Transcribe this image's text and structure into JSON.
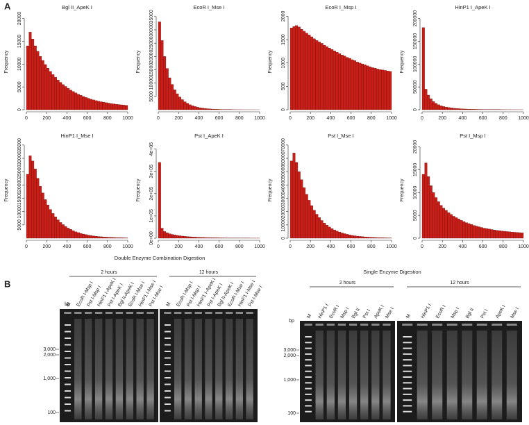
{
  "chart_data": [
    {
      "type": "histogram",
      "title": "Bgl II_ApeK I",
      "ylabel": "Frequency",
      "color": "#c81e17",
      "bins": [
        0,
        25,
        50,
        75,
        100,
        125,
        150,
        175,
        200,
        225,
        250,
        275,
        300,
        325,
        350,
        375,
        400,
        425,
        450,
        475,
        500,
        525,
        550,
        575,
        600,
        625,
        650,
        675,
        700,
        725,
        750,
        775,
        800,
        825,
        850,
        875,
        900,
        925,
        950,
        975,
        1000
      ],
      "values": [
        14000,
        17000,
        15500,
        14000,
        12800,
        11700,
        10800,
        9900,
        9100,
        8400,
        7700,
        7100,
        6500,
        6000,
        5500,
        5100,
        4700,
        4300,
        4000,
        3700,
        3400,
        3150,
        2900,
        2700,
        2500,
        2300,
        2150,
        2000,
        1850,
        1750,
        1650,
        1550,
        1450,
        1350,
        1280,
        1200,
        1130,
        1070,
        1010,
        960
      ],
      "xlim": [
        0,
        1000
      ],
      "xticks": [
        0,
        200,
        400,
        600,
        800,
        1000
      ],
      "ylim": [
        0,
        21000
      ],
      "yticks": [
        0,
        5000,
        10000,
        15000,
        20000
      ]
    },
    {
      "type": "histogram",
      "title": "EcoR I_Mse I",
      "ylabel": "Frequency",
      "color": "#c81e17",
      "bins": [
        0,
        25,
        50,
        75,
        100,
        125,
        150,
        175,
        200,
        225,
        250,
        275,
        300,
        325,
        350,
        375,
        400,
        425,
        450,
        475,
        500,
        525,
        550,
        575,
        600,
        625,
        650,
        675,
        700,
        725,
        750,
        775,
        800,
        825,
        850,
        875,
        900,
        925,
        950,
        975,
        1000
      ],
      "values": [
        33000,
        26000,
        20000,
        15500,
        12000,
        9500,
        7500,
        6000,
        4800,
        3800,
        3000,
        2400,
        1900,
        1500,
        1200,
        950,
        750,
        600,
        480,
        380,
        300,
        240,
        190,
        150,
        120,
        95,
        75,
        60,
        48,
        38,
        30,
        24,
        19,
        15,
        12,
        10,
        8,
        6,
        5,
        4
      ],
      "xlim": [
        0,
        1000
      ],
      "xticks": [
        0,
        200,
        400,
        600,
        800,
        1000
      ],
      "ylim": [
        0,
        36000
      ],
      "yticks": [
        5000,
        10000,
        15000,
        20000,
        25000,
        30000,
        35000
      ]
    },
    {
      "type": "histogram",
      "title": "EcoR I_Msp I",
      "ylabel": "Frequency",
      "color": "#c81e17",
      "bins": [
        0,
        25,
        50,
        75,
        100,
        125,
        150,
        175,
        200,
        225,
        250,
        275,
        300,
        325,
        350,
        375,
        400,
        425,
        450,
        475,
        500,
        525,
        550,
        575,
        600,
        625,
        650,
        675,
        700,
        725,
        750,
        775,
        800,
        825,
        850,
        875,
        900,
        925,
        950,
        975,
        1000
      ],
      "values": [
        1750,
        1780,
        1800,
        1770,
        1720,
        1680,
        1640,
        1600,
        1560,
        1520,
        1480,
        1450,
        1420,
        1380,
        1350,
        1320,
        1290,
        1260,
        1230,
        1200,
        1170,
        1150,
        1120,
        1100,
        1070,
        1050,
        1020,
        1000,
        980,
        960,
        940,
        920,
        900,
        890,
        870,
        860,
        850,
        840,
        830,
        820
      ],
      "xlim": [
        0,
        1000
      ],
      "xticks": [
        0,
        200,
        400,
        600,
        800,
        1000
      ],
      "ylim": [
        0,
        2050
      ],
      "yticks": [
        0,
        500,
        1000,
        1500,
        2000
      ]
    },
    {
      "type": "histogram",
      "title": "HinP1 I_ApeK I",
      "ylabel": "Frequency",
      "color": "#c81e17",
      "bins": [
        0,
        25,
        50,
        75,
        100,
        125,
        150,
        175,
        200,
        225,
        250,
        275,
        300,
        325,
        350,
        375,
        400,
        425,
        450,
        475,
        500,
        525,
        550,
        575,
        600,
        625,
        650,
        675,
        700,
        725,
        750,
        775,
        800,
        825,
        850,
        875,
        900,
        925,
        950,
        975,
        1000
      ],
      "values": [
        180000,
        45000,
        32000,
        24000,
        18000,
        14000,
        11000,
        8500,
        7000,
        5800,
        4800,
        4000,
        3300,
        2800,
        2400,
        2000,
        1700,
        1500,
        1300,
        1100,
        950,
        830,
        720,
        630,
        550,
        480,
        420,
        370,
        320,
        280,
        250,
        220,
        190,
        170,
        150,
        130,
        120,
        100,
        90,
        80
      ],
      "xlim": [
        0,
        1000
      ],
      "xticks": [
        0,
        200,
        400,
        600,
        800,
        1000
      ],
      "ylim": [
        0,
        210000
      ],
      "yticks": [
        0,
        50000,
        100000,
        150000,
        200000
      ]
    },
    {
      "type": "histogram",
      "title": "HinP1 I_Mse I",
      "ylabel": "Frequency",
      "color": "#c81e17",
      "bins": [
        0,
        25,
        50,
        75,
        100,
        125,
        150,
        175,
        200,
        225,
        250,
        275,
        300,
        325,
        350,
        375,
        400,
        425,
        450,
        475,
        500,
        525,
        550,
        575,
        600,
        625,
        650,
        675,
        700,
        725,
        750,
        775,
        800,
        825,
        850,
        875,
        900,
        925,
        950,
        975,
        1000
      ],
      "values": [
        24000,
        31000,
        29000,
        26000,
        22500,
        19500,
        17000,
        14500,
        12500,
        10800,
        9300,
        8000,
        6900,
        5900,
        5100,
        4400,
        3800,
        3300,
        2800,
        2400,
        2100,
        1800,
        1550,
        1350,
        1150,
        1000,
        850,
        740,
        640,
        550,
        480,
        410,
        360,
        310,
        270,
        230,
        200,
        170,
        150,
        130
      ],
      "xlim": [
        0,
        1000
      ],
      "xticks": [
        0,
        200,
        400,
        600,
        800,
        1000
      ],
      "ylim": [
        0,
        36000
      ],
      "yticks": [
        5000,
        10000,
        15000,
        20000,
        25000,
        30000,
        35000
      ]
    },
    {
      "type": "histogram",
      "title": "Pst I_ApeK I",
      "ylabel": "Frequency",
      "color": "#c81e17",
      "bins": [
        0,
        25,
        50,
        75,
        100,
        125,
        150,
        175,
        200,
        225,
        250,
        275,
        300,
        325,
        350,
        375,
        400,
        425,
        450,
        475,
        500,
        525,
        550,
        575,
        600,
        625,
        650,
        675,
        700,
        725,
        750,
        775,
        800,
        825,
        850,
        875,
        900,
        925,
        950,
        975,
        1000
      ],
      "values": [
        340000,
        45000,
        30000,
        24000,
        20000,
        17000,
        14500,
        12500,
        11000,
        9500,
        8300,
        7300,
        6400,
        5700,
        5000,
        4400,
        3900,
        3500,
        3100,
        2800,
        2500,
        2200,
        2000,
        1800,
        1600,
        1450,
        1300,
        1150,
        1050,
        950,
        850,
        770,
        700,
        630,
        570,
        510,
        460,
        420,
        380,
        340
      ],
      "xlim": [
        0,
        1000
      ],
      "xticks": [
        0,
        200,
        400,
        600,
        800,
        1000
      ],
      "ylim": [
        0,
        430000
      ],
      "yticks": [
        {
          "value": 0,
          "label": "0e+00"
        },
        {
          "value": 100000,
          "label": "1e+05"
        },
        {
          "value": 200000,
          "label": "2e+05"
        },
        {
          "value": 300000,
          "label": "3e+05"
        },
        {
          "value": 400000,
          "label": "4e+05"
        }
      ]
    },
    {
      "type": "histogram",
      "title": "Pst I_Mse I",
      "ylabel": "Frequency",
      "color": "#c81e17",
      "bins": [
        0,
        25,
        50,
        75,
        100,
        125,
        150,
        175,
        200,
        225,
        250,
        275,
        300,
        325,
        350,
        375,
        400,
        425,
        450,
        475,
        500,
        525,
        550,
        575,
        600,
        625,
        650,
        675,
        700,
        725,
        750,
        775,
        800,
        825,
        850,
        875,
        900,
        925,
        950,
        975,
        1000
      ],
      "values": [
        58000,
        64000,
        57000,
        50000,
        44000,
        38000,
        33000,
        28500,
        24500,
        21000,
        18000,
        15500,
        13300,
        11400,
        9800,
        8400,
        7200,
        6200,
        5300,
        4600,
        3900,
        3400,
        2900,
        2500,
        2100,
        1800,
        1550,
        1350,
        1150,
        1000,
        850,
        730,
        630,
        540,
        460,
        400,
        340,
        290,
        250,
        210
      ],
      "xlim": [
        0,
        1000
      ],
      "xticks": [
        0,
        200,
        400,
        600,
        800,
        1000
      ],
      "ylim": [
        0,
        72000
      ],
      "yticks": [
        0,
        10000,
        20000,
        30000,
        40000,
        50000,
        60000,
        70000
      ]
    },
    {
      "type": "histogram",
      "title": "Pst I_Msp I",
      "ylabel": "Frequency",
      "color": "#c81e17",
      "bins": [
        0,
        25,
        50,
        75,
        100,
        125,
        150,
        175,
        200,
        225,
        250,
        275,
        300,
        325,
        350,
        375,
        400,
        425,
        450,
        475,
        500,
        525,
        550,
        575,
        600,
        625,
        650,
        675,
        700,
        725,
        750,
        775,
        800,
        825,
        850,
        875,
        900,
        925,
        950,
        975,
        1000
      ],
      "values": [
        14000,
        16500,
        13500,
        11500,
        10000,
        8900,
        8000,
        7200,
        6600,
        6100,
        5600,
        5200,
        4800,
        4500,
        4200,
        3900,
        3650,
        3400,
        3200,
        3000,
        2800,
        2650,
        2500,
        2350,
        2200,
        2100,
        2000,
        1900,
        1800,
        1720,
        1650,
        1580,
        1520,
        1460,
        1400,
        1350,
        1300,
        1260,
        1220,
        1180
      ],
      "xlim": [
        0,
        1000
      ],
      "xticks": [
        0,
        200,
        400,
        600,
        800,
        1000
      ],
      "ylim": [
        0,
        21000
      ],
      "yticks": [
        0,
        5000,
        10000,
        15000,
        20000
      ]
    }
  ],
  "panel_a": {
    "label": "A"
  },
  "panel_b": {
    "label": "B",
    "double": {
      "title": "Double Enzyme Combination Digestion",
      "time_labels": [
        "2 hours",
        "12 hours"
      ],
      "lanes": [
        "M",
        "EcoR I-Msp I",
        "Pst I-Msp I",
        "HinP1 I-ApeK I",
        "Pst I-ApeK I",
        "Bgl II-ApeK I",
        "EcoR I-Mse I",
        "HinP1 I-Mse I",
        "Pst I-Mse I"
      ],
      "bp_label": "bp",
      "size_labels": [
        "3,000",
        "2,000",
        "1,000",
        "100"
      ]
    },
    "single": {
      "title": "Single Enzyme Digestion",
      "time_labels": [
        "2 hours",
        "12 hours"
      ],
      "lanes": [
        "M",
        "HinP1 I",
        "EcoR I",
        "Msp I",
        "Bgl II",
        "Pst I",
        "ApeK I",
        "Mse I"
      ],
      "bp_label": "bp",
      "size_labels": [
        "3,000",
        "2,000",
        "1,000",
        "100"
      ]
    }
  }
}
